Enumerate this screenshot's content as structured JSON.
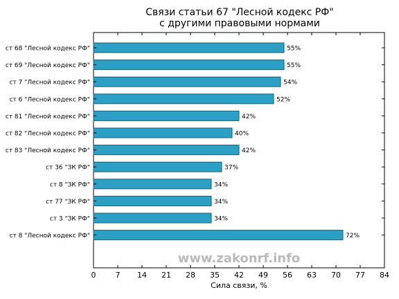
{
  "chart_data": {
    "type": "bar",
    "orientation": "horizontal",
    "title_lines": [
      "Связи статьи 67 \"Лесной кодекс РФ\"",
      "с другими правовыми нормами"
    ],
    "xlabel": "Сила связи, %",
    "ylabel": "",
    "xlim": [
      0,
      84
    ],
    "x_ticks": [
      "0",
      "7",
      "14",
      "21",
      "28",
      "35",
      "42",
      "49",
      "56",
      "63",
      "70",
      "77",
      "84"
    ],
    "grid": false,
    "categories": [
      "ст 68 \"Лесной кодекс РФ\"",
      "ст 69 \"Лесной кодекс РФ\"",
      "ст 7 \"Лесной кодекс РФ\"",
      "ст 6 \"Лесной кодекс РФ\"",
      "ст 81 \"Лесной кодекс РФ\"",
      "ст 82 \"Лесной кодекс РФ\"",
      "ст 83 \"Лесной кодекс РФ\"",
      "ст 36 \"ЗК РФ\"",
      "ст 8 \"ЗК РФ\"",
      "ст 77 \"ЗК РФ\"",
      "ст 3 \"ЗК РФ\"",
      "ст 8 \"Лесной кодекс РФ\""
    ],
    "values": [
      55,
      55,
      54,
      52,
      42,
      40,
      42,
      37,
      34,
      34,
      34,
      72
    ],
    "value_labels": [
      "55%",
      "55%",
      "54%",
      "52%",
      "42%",
      "40%",
      "42%",
      "37%",
      "34%",
      "34%",
      "34%",
      "72%"
    ],
    "bar_color": "#2b9fc4",
    "bar_edge_color": "#1d5f77",
    "watermark": "www.zakonrf.info",
    "watermark_color": "#b3b3b3"
  }
}
